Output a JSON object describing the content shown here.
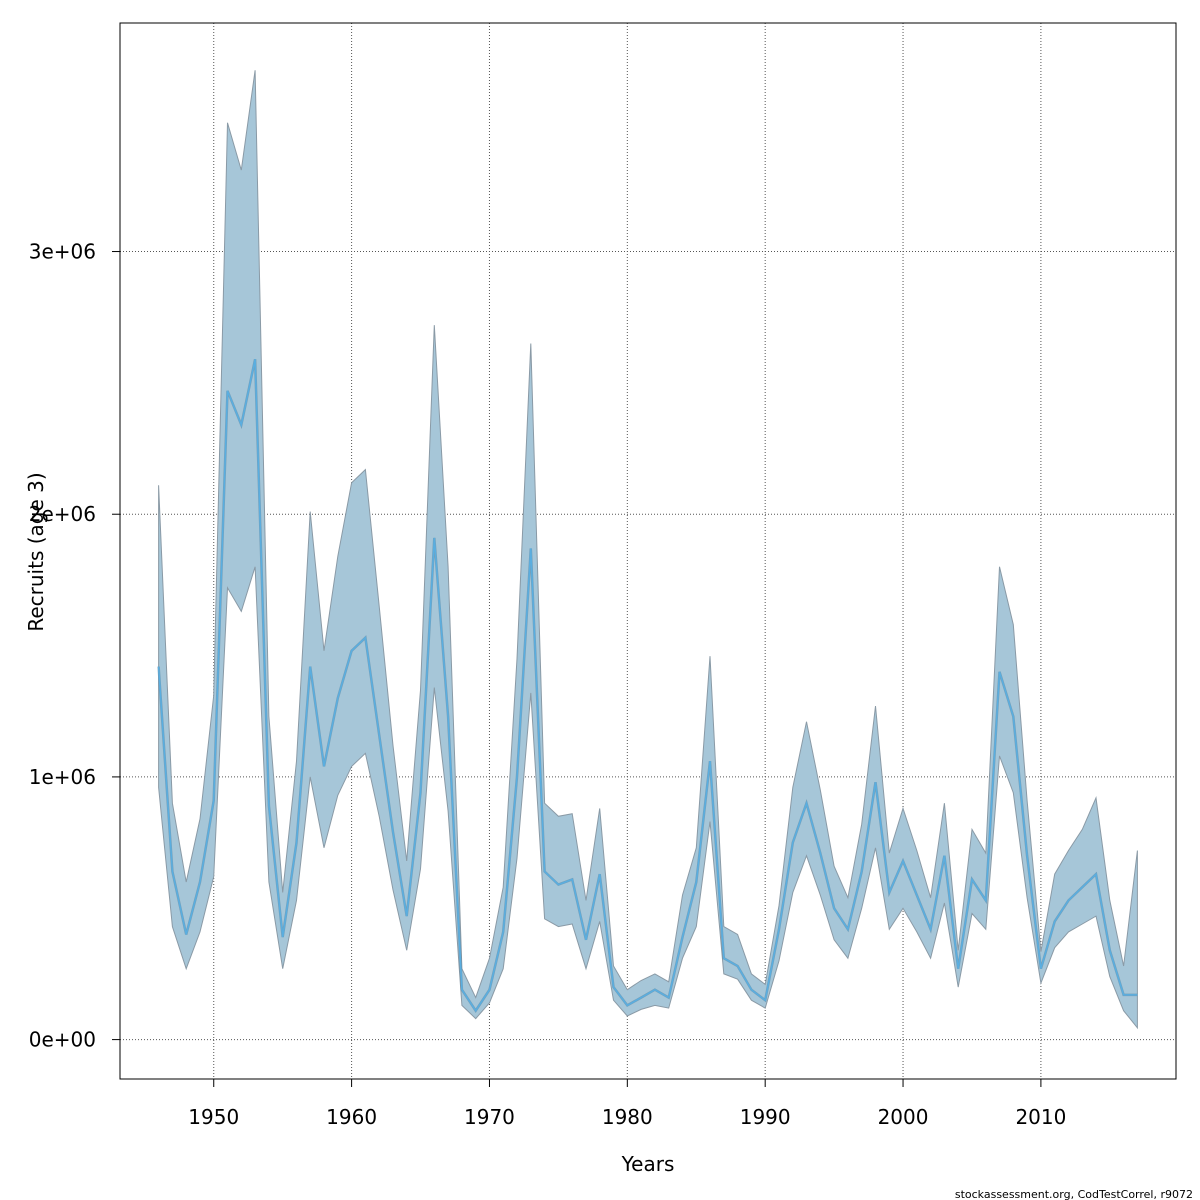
{
  "chart_data": {
    "type": "area",
    "xlabel": "Years",
    "ylabel": "Recruits (age 3)",
    "xlim": [
      1943.2,
      2019.8
    ],
    "ylim": [
      -150000,
      3870000
    ],
    "x_ticks": [
      1950,
      1960,
      1970,
      1980,
      1990,
      2000,
      2010
    ],
    "y_ticks": [
      0,
      1000000,
      2000000,
      3000000
    ],
    "y_tick_labels": [
      "0e+00",
      "1e+06",
      "2e+06",
      "3e+06"
    ],
    "grid": true,
    "credit": "stockassessment.org, CodTestCorrel, r9072",
    "colors": {
      "band": "#a6c6d8",
      "band_edge": "#8a9aa6",
      "estimate": "#5aaee0",
      "estimate_dark": "#4a7fa0",
      "grid": "#555555"
    },
    "series": [
      {
        "x": [
          1946,
          1947,
          1948,
          1949,
          1950,
          1951,
          1952,
          1953,
          1954,
          1955,
          1956,
          1957,
          1958,
          1959,
          1960,
          1961,
          1962,
          1963,
          1964,
          1965,
          1966,
          1967,
          1968,
          1969,
          1970,
          1971,
          1972,
          1973,
          1974,
          1975,
          1976,
          1977,
          1978,
          1979,
          1980,
          1981,
          1982,
          1983,
          1984,
          1985,
          1986,
          1987,
          1988,
          1989,
          1990,
          1991,
          1992,
          1993,
          1994,
          1995,
          1996,
          1997,
          1998,
          1999,
          2000,
          2001,
          2002,
          2003,
          2004,
          2005,
          2006,
          2007,
          2008,
          2009,
          2010,
          2011,
          2012,
          2013,
          2014,
          2015,
          2016,
          2017
        ],
        "estimate": [
          1420000,
          640000,
          400000,
          600000,
          910000,
          2470000,
          2340000,
          2590000,
          890000,
          390000,
          750000,
          1420000,
          1040000,
          1300000,
          1480000,
          1530000,
          1160000,
          790000,
          470000,
          940000,
          1910000,
          1230000,
          190000,
          110000,
          190000,
          410000,
          1000000,
          1870000,
          640000,
          590000,
          610000,
          380000,
          630000,
          200000,
          130000,
          160000,
          190000,
          160000,
          390000,
          600000,
          1060000,
          310000,
          280000,
          190000,
          150000,
          420000,
          750000,
          900000,
          710000,
          500000,
          420000,
          640000,
          980000,
          560000,
          680000,
          550000,
          420000,
          700000,
          270000,
          610000,
          530000,
          1400000,
          1230000,
          700000,
          270000,
          450000,
          530000,
          580000,
          630000,
          340000,
          170000,
          170000
        ],
        "lower": [
          960000,
          430000,
          270000,
          410000,
          620000,
          1720000,
          1630000,
          1800000,
          600000,
          270000,
          530000,
          1000000,
          730000,
          930000,
          1040000,
          1090000,
          850000,
          570000,
          340000,
          650000,
          1340000,
          870000,
          130000,
          80000,
          140000,
          270000,
          690000,
          1320000,
          460000,
          430000,
          440000,
          270000,
          450000,
          150000,
          90000,
          115000,
          130000,
          120000,
          310000,
          430000,
          830000,
          250000,
          230000,
          150000,
          120000,
          300000,
          560000,
          700000,
          550000,
          380000,
          310000,
          500000,
          730000,
          420000,
          500000,
          410000,
          310000,
          520000,
          200000,
          480000,
          420000,
          1080000,
          940000,
          540000,
          215000,
          350000,
          410000,
          440000,
          470000,
          240000,
          110000,
          45000
        ],
        "upper": [
          2110000,
          900000,
          600000,
          840000,
          1310000,
          3490000,
          3310000,
          3690000,
          1230000,
          560000,
          1060000,
          2010000,
          1480000,
          1840000,
          2120000,
          2170000,
          1650000,
          1120000,
          680000,
          1330000,
          2720000,
          1800000,
          270000,
          160000,
          310000,
          580000,
          1450000,
          2650000,
          900000,
          850000,
          860000,
          530000,
          880000,
          280000,
          190000,
          225000,
          250000,
          220000,
          550000,
          730000,
          1460000,
          430000,
          400000,
          250000,
          210000,
          510000,
          960000,
          1210000,
          950000,
          660000,
          540000,
          820000,
          1270000,
          710000,
          880000,
          720000,
          540000,
          900000,
          340000,
          800000,
          710000,
          1800000,
          1580000,
          910000,
          335000,
          630000,
          720000,
          800000,
          920000,
          530000,
          280000,
          720000
        ]
      }
    ]
  }
}
